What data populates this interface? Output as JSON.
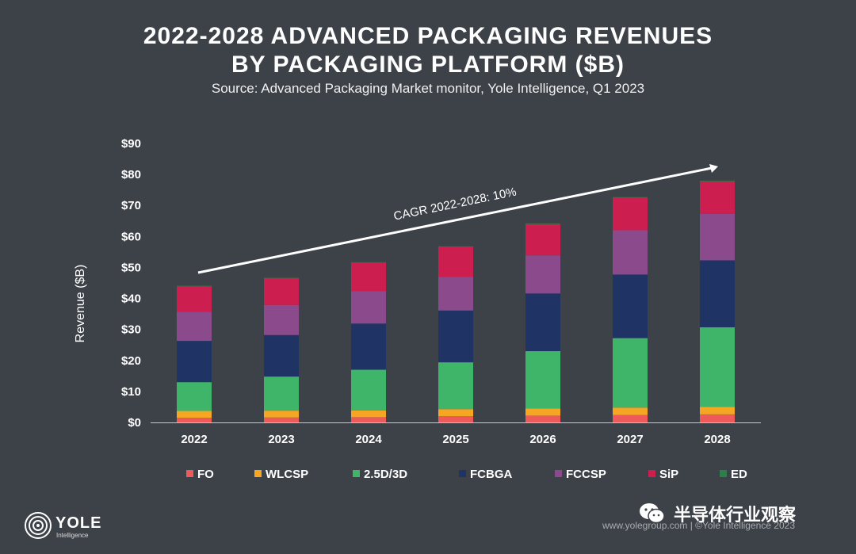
{
  "title_line1": "2022-2028 ADVANCED PACKAGING REVENUES",
  "title_line2": "BY PACKAGING PLATFORM ($B)",
  "subtitle": "Source: Advanced Packaging Market monitor, Yole Intelligence, Q1 2023",
  "logo": {
    "name": "YOLE",
    "sub": "Intelligence"
  },
  "watermark": "半导体行业观察",
  "website": "www.yolegroup.com | ©Yole Intelligence 2023",
  "colors": {
    "FO": "#ee5a5a",
    "WLCSP": "#f5a623",
    "2.5D/3D": "#3fb56a",
    "FCBGA": "#1f3364",
    "FCCSP": "#8a4a8c",
    "SiP": "#cc1f4f",
    "ED": "#2e7d4a"
  },
  "chart_data": {
    "type": "bar",
    "stacked": true,
    "categories": [
      "2022",
      "2023",
      "2024",
      "2025",
      "2026",
      "2027",
      "2028"
    ],
    "series": [
      {
        "name": "FO",
        "values": [
          1.5,
          1.6,
          1.7,
          2.0,
          2.2,
          2.4,
          2.6
        ]
      },
      {
        "name": "WLCSP",
        "values": [
          2.2,
          2.2,
          2.2,
          2.3,
          2.3,
          2.4,
          2.4
        ]
      },
      {
        "name": "2.5D/3D",
        "values": [
          9.3,
          11.0,
          13.1,
          15.1,
          18.5,
          22.4,
          25.7
        ]
      },
      {
        "name": "FCBGA",
        "values": [
          13.3,
          13.4,
          14.9,
          16.7,
          18.6,
          20.5,
          21.6
        ]
      },
      {
        "name": "FCCSP",
        "values": [
          9.4,
          9.7,
          10.5,
          10.9,
          12.3,
          14.3,
          15.0
        ]
      },
      {
        "name": "SiP",
        "values": [
          8.3,
          8.7,
          9.2,
          9.6,
          10.1,
          10.5,
          10.5
        ]
      },
      {
        "name": "ED",
        "values": [
          0.1,
          0.1,
          0.1,
          0.2,
          0.2,
          0.2,
          0.2
        ]
      }
    ],
    "ylabel": "Revenue ($B)",
    "xlabel": "",
    "ylim": [
      0,
      90
    ],
    "yticks": [
      "$0",
      "$10",
      "$20",
      "$30",
      "$40",
      "$50",
      "$60",
      "$70",
      "$80",
      "$90"
    ],
    "grid": false,
    "legend_position": "bottom",
    "annotation": "CAGR 2022-2028: 10%"
  }
}
